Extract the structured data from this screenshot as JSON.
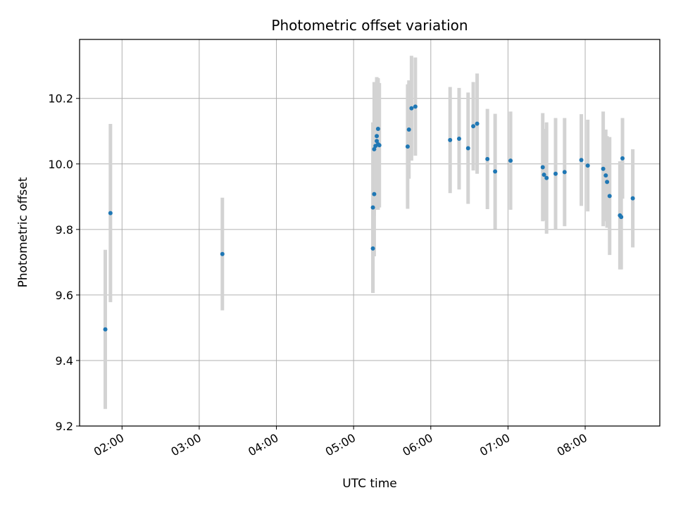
{
  "chart_data": {
    "type": "scatter",
    "title": "Photometric offset variation",
    "xlabel": "UTC time",
    "ylabel": "Photometric offset",
    "xlim": [
      "01:27",
      "08:58"
    ],
    "ylim": [
      9.2,
      10.38
    ],
    "x_ticks": [
      "02:00",
      "03:00",
      "04:00",
      "05:00",
      "06:00",
      "07:00",
      "08:00"
    ],
    "y_ticks": [
      "9.2",
      "9.4",
      "9.6",
      "9.8",
      "10.0",
      "10.2"
    ],
    "grid": true,
    "marker_color": "#1f77b4",
    "errorbar_color": "#d3d3d3",
    "points": [
      {
        "x": "01:47",
        "y": 9.495,
        "err": 0.243
      },
      {
        "x": "01:51",
        "y": 9.85,
        "err": 0.272
      },
      {
        "x": "03:18",
        "y": 9.725,
        "err": 0.172
      },
      {
        "x": "05:15",
        "y": 9.742,
        "err": 0.136
      },
      {
        "x": "05:15",
        "y": 9.867,
        "err": 0.26
      },
      {
        "x": "05:16",
        "y": 9.908,
        "err": 0.19
      },
      {
        "x": "05:16",
        "y": 10.045,
        "err": 0.205
      },
      {
        "x": "05:17",
        "y": 10.055,
        "err": 0.195
      },
      {
        "x": "05:18",
        "y": 10.085,
        "err": 0.18
      },
      {
        "x": "05:18",
        "y": 10.07,
        "err": 0.185
      },
      {
        "x": "05:19",
        "y": 10.107,
        "err": 0.155
      },
      {
        "x": "05:19",
        "y": 10.06,
        "err": 0.2
      },
      {
        "x": "05:20",
        "y": 10.057,
        "err": 0.19
      },
      {
        "x": "05:42",
        "y": 10.053,
        "err": 0.19
      },
      {
        "x": "05:43",
        "y": 10.105,
        "err": 0.15
      },
      {
        "x": "05:45",
        "y": 10.17,
        "err": 0.16
      },
      {
        "x": "05:48",
        "y": 10.175,
        "err": 0.15
      },
      {
        "x": "06:15",
        "y": 10.073,
        "err": 0.162
      },
      {
        "x": "06:22",
        "y": 10.077,
        "err": 0.155
      },
      {
        "x": "06:29",
        "y": 10.048,
        "err": 0.17
      },
      {
        "x": "06:33",
        "y": 10.115,
        "err": 0.135
      },
      {
        "x": "06:36",
        "y": 10.123,
        "err": 0.153
      },
      {
        "x": "06:44",
        "y": 10.015,
        "err": 0.153
      },
      {
        "x": "06:50",
        "y": 9.977,
        "err": 0.176
      },
      {
        "x": "07:02",
        "y": 10.01,
        "err": 0.15
      },
      {
        "x": "07:27",
        "y": 9.99,
        "err": 0.165
      },
      {
        "x": "07:28",
        "y": 9.967,
        "err": 0.14
      },
      {
        "x": "07:30",
        "y": 9.957,
        "err": 0.17
      },
      {
        "x": "07:37",
        "y": 9.97,
        "err": 0.17
      },
      {
        "x": "07:44",
        "y": 9.975,
        "err": 0.165
      },
      {
        "x": "07:57",
        "y": 10.012,
        "err": 0.14
      },
      {
        "x": "08:02",
        "y": 9.995,
        "err": 0.14
      },
      {
        "x": "08:14",
        "y": 9.985,
        "err": 0.175
      },
      {
        "x": "08:16",
        "y": 9.965,
        "err": 0.14
      },
      {
        "x": "08:17",
        "y": 9.945,
        "err": 0.14
      },
      {
        "x": "08:19",
        "y": 9.902,
        "err": 0.18
      },
      {
        "x": "08:27",
        "y": 9.843,
        "err": 0.165
      },
      {
        "x": "08:28",
        "y": 9.838,
        "err": 0.16
      },
      {
        "x": "08:29",
        "y": 10.017,
        "err": 0.123
      },
      {
        "x": "08:37",
        "y": 9.895,
        "err": 0.15
      }
    ]
  }
}
